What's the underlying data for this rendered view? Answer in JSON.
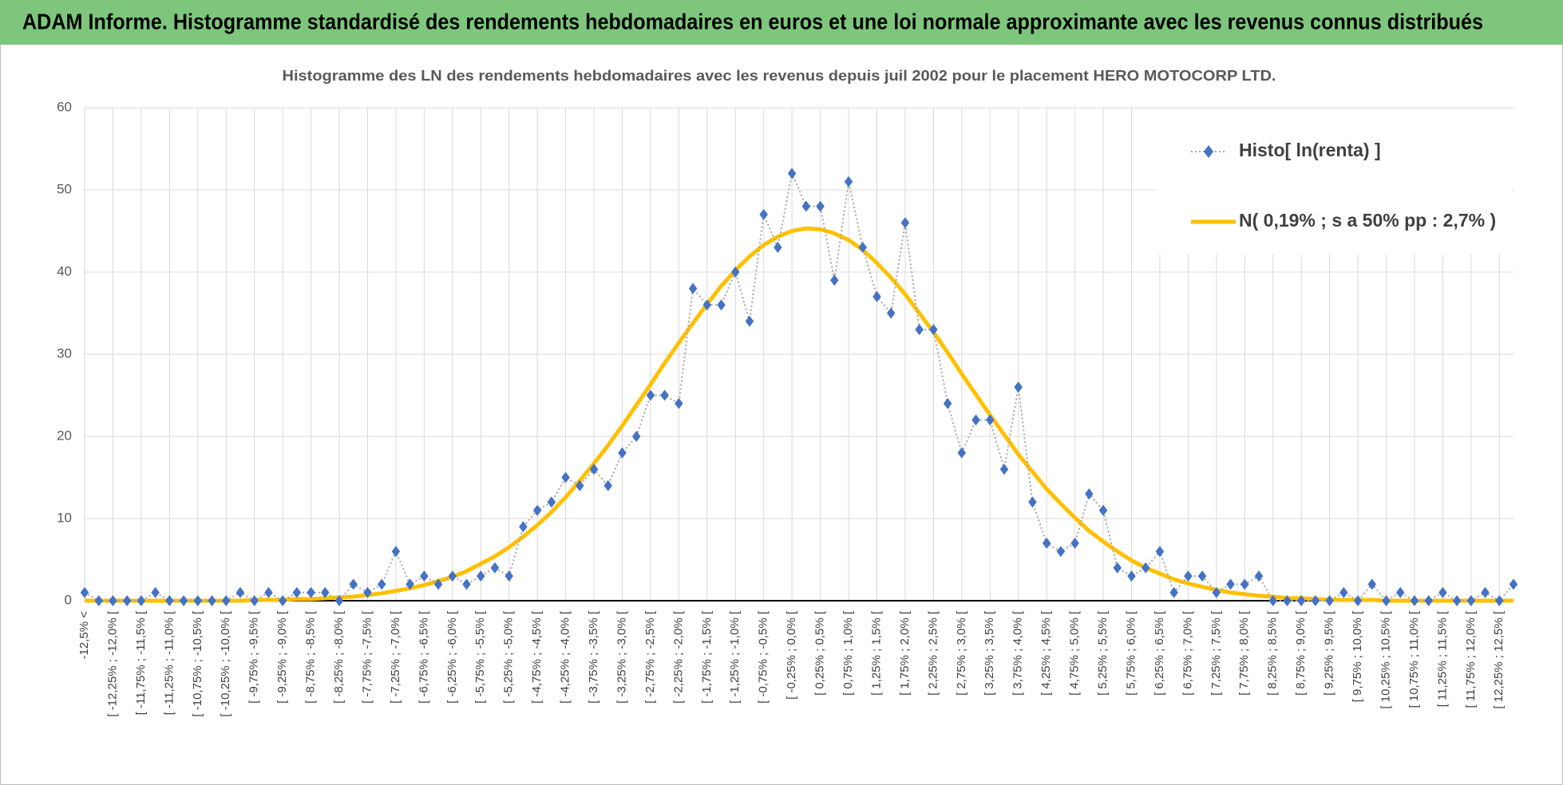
{
  "header": {
    "title": "ADAM Informe. Histogramme standardisé des rendements hebdomadaires en euros et une loi normale approximante avec les revenus connus distribués"
  },
  "chart_data": {
    "type": "line",
    "title": "Histogramme des LN des rendements hebdomadaires avec les revenus depuis juil 2002 pour le placement HERO MOTOCORP LTD.",
    "categories": [
      "-12,5% <",
      null,
      "[ -12,25% ; -12,0% [",
      null,
      "[ -11,75% ; -11,5% [",
      null,
      "[ -11,25% ; -11,0% [",
      null,
      "[ -10,75% ; -10,5% [",
      null,
      "[ -10,25% ; -10,0% [",
      null,
      "[ -9,75% ; -9,5% [",
      null,
      "[ -9,25% ; -9,0% [",
      null,
      "[ -8,75% ; -8,5% [",
      null,
      "[ -8,25% ; -8,0% [",
      null,
      "[ -7,75% ; -7,5% [",
      null,
      "[ -7,25% ; -7,0% [",
      null,
      "[ -6,75% ; -6,5% [",
      null,
      "[ -6,25% ; -6,0% [",
      null,
      "[ -5,75% ; -5,5% [",
      null,
      "[ -5,25% ; -5,0% [",
      null,
      "[ -4,75% ; -4,5% [",
      null,
      "[ -4,25% ; -4,0% [",
      null,
      "[ -3,75% ; -3,5% [",
      null,
      "[ -3,25% ; -3,0% [",
      null,
      "[ -2,75% ; -2,5% [",
      null,
      "[ -2,25% ; -2,0% [",
      null,
      "[ -1,75% ; -1,5% [",
      null,
      "[ -1,25% ; -1,0% [",
      null,
      "[ -0,75% ; -0,5% [",
      null,
      "[ -0,25% ; 0,0% [",
      null,
      "[ 0,25% ; 0,5% [",
      null,
      "[ 0,75% ; 1,0% [",
      null,
      "[ 1,25% ; 1,5% [",
      null,
      "[ 1,75% ; 2,0% [",
      null,
      "[ 2,25% ; 2,5% [",
      null,
      "[ 2,75% ; 3,0% [",
      null,
      "[ 3,25% ; 3,5% [",
      null,
      "[ 3,75% ; 4,0% [",
      null,
      "[ 4,25% ; 4,5% [",
      null,
      "[ 4,75% ; 5,0% [",
      null,
      "[ 5,25% ; 5,5% [",
      null,
      "[ 5,75% ; 6,0% [",
      null,
      "[ 6,25% ; 6,5% [",
      null,
      "[ 6,75% ; 7,0% [",
      null,
      "[ 7,25% ; 7,5% [",
      null,
      "[ 7,75% ; 8,0% [",
      null,
      "[ 8,25% ; 8,5% [",
      null,
      "[ 8,75% ; 9,0% [",
      null,
      "[ 9,25% ; 9,5% [",
      null,
      "[ 9,75% ; 10,0% [",
      null,
      "[ 10,25% ; 10,5% [",
      null,
      "[ 10,75% ; 11,0% [",
      null,
      "[ 11,25% ; 11,5% [",
      null,
      "[ 11,75% ; 12,0% [",
      null,
      "[ 12,25% ; 12,5% [",
      null
    ],
    "series": [
      {
        "name": "Histo[ ln(renta) ]",
        "color": "#4472c4",
        "values": [
          1,
          0,
          0,
          0,
          0,
          1,
          0,
          0,
          0,
          0,
          0,
          1,
          0,
          1,
          0,
          1,
          1,
          1,
          0,
          2,
          1,
          2,
          6,
          2,
          3,
          2,
          3,
          2,
          3,
          4,
          3,
          9,
          11,
          12,
          15,
          14,
          16,
          14,
          18,
          20,
          25,
          25,
          24,
          38,
          36,
          36,
          40,
          34,
          47,
          43,
          52,
          48,
          48,
          39,
          51,
          43,
          37,
          35,
          46,
          33,
          33,
          24,
          18,
          22,
          22,
          16,
          26,
          12,
          7,
          6,
          7,
          13,
          11,
          4,
          3,
          4,
          6,
          1,
          3,
          3,
          1,
          2,
          2,
          3,
          0,
          0,
          0,
          0,
          0,
          1,
          0,
          2,
          0,
          1,
          0,
          0,
          1,
          0,
          0,
          1,
          0,
          2
        ]
      },
      {
        "name": "N( 0,19% ; s a 50% pp : 2,7% )",
        "color": "#ffc000",
        "values": [
          0,
          0,
          0,
          0,
          0,
          0,
          0,
          0,
          0,
          0,
          0,
          0,
          0.1,
          0.1,
          0.1,
          0.2,
          0.2,
          0.3,
          0.4,
          0.5,
          0.7,
          0.9,
          1.2,
          1.5,
          1.9,
          2.4,
          2.9,
          3.6,
          4.5,
          5.4,
          6.5,
          7.8,
          9.2,
          10.8,
          12.6,
          14.6,
          16.7,
          18.9,
          21.3,
          23.8,
          26.3,
          28.9,
          31.4,
          33.8,
          36.1,
          38.3,
          40.2,
          41.9,
          43.3,
          44.3,
          45.0,
          45.3,
          45.2,
          44.7,
          43.9,
          42.7,
          41.1,
          39.3,
          37.3,
          35.0,
          32.7,
          30.2,
          27.6,
          25.1,
          22.6,
          20.2,
          17.8,
          15.7,
          13.6,
          11.8,
          10.1,
          8.5,
          7.2,
          6.0,
          4.9,
          4.0,
          3.3,
          2.6,
          2.1,
          1.7,
          1.3,
          1.0,
          0.8,
          0.6,
          0.5,
          0.3,
          0.3,
          0.2,
          0.1,
          0.1,
          0.1,
          0.1,
          0,
          0,
          0,
          0,
          0,
          0,
          0,
          0,
          0,
          0
        ]
      }
    ],
    "ylim": [
      0,
      60
    ],
    "yticks": [
      0,
      10,
      20,
      30,
      40,
      50,
      60
    ],
    "grid": true
  }
}
